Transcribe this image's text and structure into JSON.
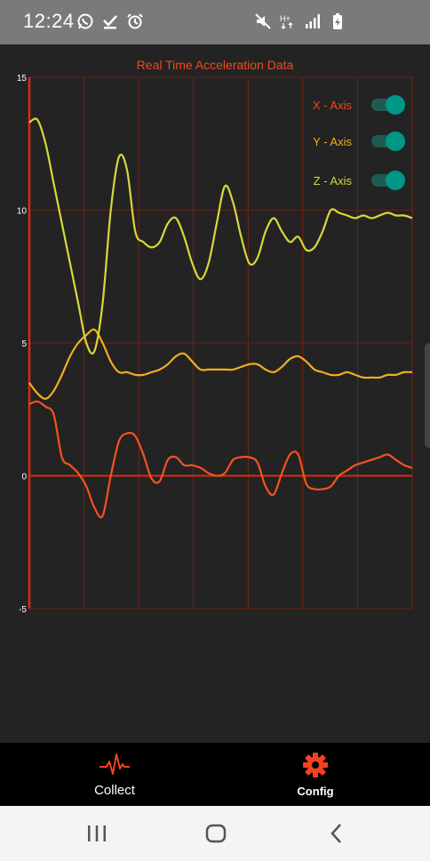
{
  "status_bar": {
    "time": "12:24",
    "left_icons": [
      "whatsapp-icon",
      "download-done-icon",
      "alarm-icon"
    ],
    "right_icons": [
      "mute-icon",
      "hplus-data-icon",
      "signal-icon",
      "battery-charging-icon"
    ],
    "network_label": "H+"
  },
  "chart_data": {
    "type": "line",
    "title": "Real Time Acceleration Data",
    "ylim": [
      -5,
      15
    ],
    "yticks": [
      "15",
      "10",
      "5",
      "0",
      "-5"
    ],
    "ytick_values": [
      15,
      10,
      5,
      0,
      -5
    ],
    "x": [
      0,
      3,
      6,
      9,
      12,
      15,
      18,
      21,
      24,
      27,
      30,
      33,
      36,
      39,
      42,
      45,
      48,
      51,
      54,
      57,
      60,
      63,
      66,
      69,
      72,
      75,
      78,
      81,
      84,
      87,
      90,
      93,
      96,
      99,
      102,
      105,
      108,
      111,
      114,
      117,
      120,
      123,
      126,
      129,
      132,
      135,
      138,
      141
    ],
    "xlim": [
      0,
      141
    ],
    "grid": true,
    "legend_placement": "top-right",
    "colors": {
      "background": "#232323",
      "grid": "#8a1f10",
      "zero_line": "#d42e12",
      "axis": "#e02810",
      "title": "#ef4a23",
      "tick_label": "#ffffff"
    },
    "series": [
      {
        "name": "X - Axis",
        "color": "#f4531f",
        "values": [
          2.7,
          2.8,
          2.6,
          2.3,
          0.7,
          0.4,
          0.1,
          -0.4,
          -1.2,
          -1.5,
          0.0,
          1.3,
          1.6,
          1.5,
          0.8,
          -0.1,
          -0.2,
          0.6,
          0.7,
          0.4,
          0.4,
          0.3,
          0.1,
          0.0,
          0.1,
          0.6,
          0.7,
          0.7,
          0.5,
          -0.4,
          -0.7,
          0.1,
          0.8,
          0.8,
          -0.3,
          -0.5,
          -0.5,
          -0.4,
          0.0,
          0.2,
          0.4,
          0.5,
          0.6,
          0.7,
          0.8,
          0.6,
          0.4,
          0.3
        ]
      },
      {
        "name": "Y - Axis",
        "color": "#f2ad20",
        "values": [
          3.5,
          3.1,
          2.9,
          3.2,
          3.8,
          4.5,
          5.0,
          5.3,
          5.5,
          5.0,
          4.3,
          3.9,
          3.9,
          3.8,
          3.8,
          3.9,
          4.0,
          4.2,
          4.5,
          4.6,
          4.3,
          4.0,
          4.0,
          4.0,
          4.0,
          4.0,
          4.1,
          4.2,
          4.2,
          4.0,
          3.9,
          4.1,
          4.4,
          4.5,
          4.3,
          4.0,
          3.9,
          3.8,
          3.8,
          3.9,
          3.8,
          3.7,
          3.7,
          3.7,
          3.8,
          3.8,
          3.9,
          3.9
        ]
      },
      {
        "name": "Z - Axis",
        "color": "#d7d83a",
        "values": [
          13.3,
          13.4,
          12.5,
          11.0,
          9.5,
          8.0,
          6.5,
          5.0,
          4.7,
          6.5,
          10.0,
          12.0,
          11.5,
          9.2,
          8.8,
          8.6,
          8.8,
          9.5,
          9.7,
          9.0,
          8.0,
          7.4,
          8.0,
          9.5,
          10.9,
          10.3,
          9.0,
          8.0,
          8.2,
          9.2,
          9.7,
          9.2,
          8.8,
          9.0,
          8.5,
          8.6,
          9.2,
          10.0,
          9.9,
          9.8,
          9.7,
          9.8,
          9.7,
          9.8,
          9.9,
          9.8,
          9.8,
          9.7
        ]
      }
    ]
  },
  "legend": {
    "items": [
      {
        "label": "X - Axis",
        "color": "#ef4a23",
        "toggle_on": true
      },
      {
        "label": "Y - Axis",
        "color": "#f2ad20",
        "toggle_on": true
      },
      {
        "label": "Z - Axis",
        "color": "#d7d83a",
        "toggle_on": true
      }
    ],
    "toggle_color": "#009688"
  },
  "bottom_nav": {
    "collect_label": "Collect",
    "config_label": "Config",
    "collect_icon": "heartbeat-icon",
    "config_icon": "gear-icon",
    "icon_color": "#f4411f"
  },
  "system_nav": {
    "recent_icon": "recent-apps-icon",
    "home_icon": "home-icon",
    "back_icon": "back-icon"
  }
}
